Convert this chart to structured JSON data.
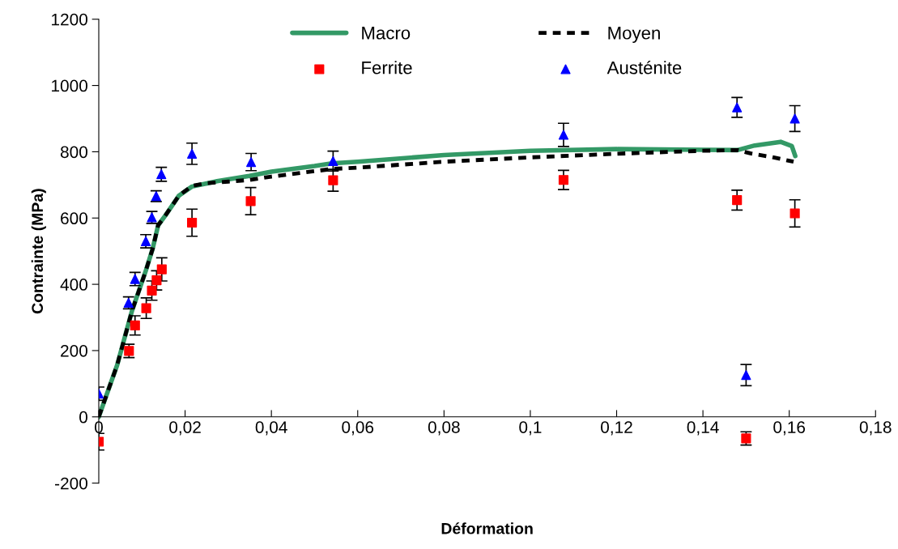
{
  "chart_data": {
    "type": "line",
    "xlabel": "Déformation",
    "ylabel": "Contrainte (MPa)",
    "xlim": [
      0,
      0.18
    ],
    "ylim": [
      -200,
      1200
    ],
    "xticks": [
      0,
      {
        "value": 0.02,
        "label": "0,02"
      },
      {
        "value": 0.04,
        "label": "0,04"
      },
      {
        "value": 0.06,
        "label": "0,06"
      },
      {
        "value": 0.08,
        "label": "0,08"
      },
      {
        "value": 0.1,
        "label": "0,1"
      },
      {
        "value": 0.12,
        "label": "0,12"
      },
      {
        "value": 0.14,
        "label": "0,14"
      },
      {
        "value": 0.16,
        "label": "0,16"
      },
      {
        "value": 0.18,
        "label": "0,18"
      }
    ],
    "yticks": [
      -200,
      0,
      200,
      400,
      600,
      800,
      1000,
      1200
    ],
    "grid": false,
    "legend": "top",
    "series": [
      {
        "name": "Macro",
        "color": "#339966",
        "line_style": "solid",
        "marker": "none",
        "x": [
          0,
          0.00425,
          0.0077,
          0.0108,
          0.0125,
          0.01375,
          0.0155,
          0.0186,
          0.0216,
          0.0274,
          0.0349,
          0.04,
          0.05,
          0.054,
          0.06,
          0.08,
          0.1,
          0.12,
          0.14,
          0.148,
          0.152,
          0.158,
          0.1606,
          0.1614
        ],
        "values": [
          0,
          156,
          320,
          437,
          508,
          578,
          609,
          668,
          695,
          711,
          727,
          740,
          757,
          765,
          770,
          790,
          803,
          808,
          806,
          805,
          819,
          830,
          817,
          787
        ]
      },
      {
        "name": "Moyen",
        "color": "#000000",
        "line_style": "dashed",
        "marker": "none",
        "x": [
          0,
          0.00425,
          0.0077,
          0.0108,
          0.0125,
          0.01375,
          0.0155,
          0.0186,
          0.0216,
          0.025,
          0.03,
          0.0349,
          0.04,
          0.054,
          0.06,
          0.08,
          0.1,
          0.12,
          0.14,
          0.148,
          0.151,
          0.156,
          0.161
        ],
        "values": [
          0,
          156,
          320,
          437,
          508,
          578,
          609,
          668,
          697,
          705,
          710,
          715,
          725,
          748,
          752,
          770,
          783,
          794,
          803,
          805,
          795,
          784,
          770
        ]
      },
      {
        "name": "Ferrite",
        "type": "scatter",
        "color": "#ff0000",
        "marker": "square",
        "x": [
          0,
          0.007,
          0.0084,
          0.011,
          0.0123,
          0.0134,
          0.0146,
          0.0216,
          0.0352,
          0.0543,
          0.1077,
          0.1479,
          0.15,
          0.1613
        ],
        "values": [
          -75,
          199,
          276,
          328,
          381,
          412,
          445,
          586,
          651,
          714,
          715,
          654,
          -65,
          614
        ],
        "errors": [
          25,
          20,
          29,
          31,
          29,
          29,
          35,
          41,
          41,
          33,
          29,
          30,
          20,
          41
        ]
      },
      {
        "name": "Austénite",
        "type": "scatter",
        "color": "#0000ff",
        "marker": "triangle",
        "x": [
          0,
          0.0069,
          0.0084,
          0.0109,
          0.0123,
          0.0133,
          0.0145,
          0.0216,
          0.0353,
          0.0543,
          0.1077,
          0.1479,
          0.15,
          0.1613
        ],
        "values": [
          70,
          344,
          416,
          530,
          602,
          666,
          732,
          794,
          769,
          772,
          851,
          934,
          126,
          900
        ],
        "errors": [
          20,
          18,
          20,
          20,
          18,
          16,
          21,
          32,
          26,
          30,
          35,
          30,
          32,
          39
        ]
      }
    ]
  }
}
